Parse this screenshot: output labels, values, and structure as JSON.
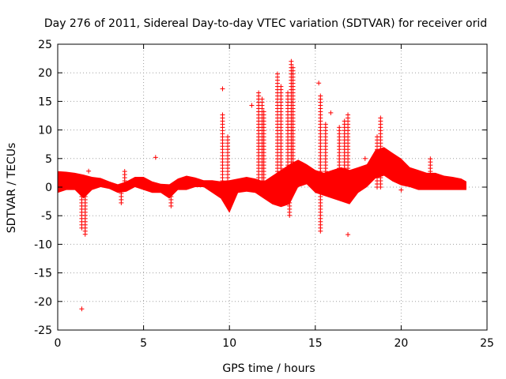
{
  "chart_data": {
    "type": "scatter",
    "title": "Day 276 of 2011, Sidereal Day-to-day VTEC variation (SDTVAR) for receiver orid",
    "xlabel": "GPS time / hours",
    "ylabel": "SDTVAR / TECUs",
    "xlim": [
      0,
      25
    ],
    "ylim": [
      -25,
      25
    ],
    "x_ticks": [
      0,
      5,
      10,
      15,
      20,
      25
    ],
    "y_ticks": [
      -25,
      -20,
      -15,
      -10,
      -5,
      0,
      5,
      10,
      15,
      20,
      25
    ],
    "grid": true,
    "marker": "+",
    "series_color": "#ff0000",
    "bands": [
      {
        "x": [
          0.0,
          0.5,
          1.0,
          1.5,
          2.0,
          2.5,
          3.0,
          3.5,
          4.0,
          4.5,
          5.0,
          5.5,
          6.0,
          6.5,
          7.0,
          7.5,
          8.0,
          8.5,
          9.0,
          9.5,
          10.0,
          10.5,
          11.0,
          11.5,
          12.0,
          12.5,
          13.0,
          13.5,
          14.0,
          14.5,
          15.0,
          15.5,
          16.0,
          16.5,
          17.0,
          17.5,
          18.0,
          18.5,
          19.0,
          19.5,
          20.0,
          20.5,
          21.0,
          21.5,
          22.0,
          22.5,
          23.0,
          23.5,
          23.8
        ],
        "upper": [
          2.8,
          2.7,
          2.5,
          2.2,
          1.8,
          1.6,
          1.0,
          0.5,
          1.0,
          1.8,
          1.8,
          1.0,
          0.6,
          0.5,
          1.5,
          2.0,
          1.7,
          1.2,
          1.2,
          1.0,
          1.2,
          1.5,
          1.8,
          1.5,
          1.0,
          2.0,
          3.0,
          4.0,
          4.8,
          4.0,
          3.0,
          2.5,
          3.0,
          3.5,
          3.0,
          3.5,
          4.0,
          6.5,
          7.0,
          6.0,
          5.0,
          3.5,
          3.0,
          2.5,
          2.5,
          2.0,
          1.8,
          1.5,
          1.0
        ],
        "lower": [
          -1.0,
          -0.5,
          -0.5,
          -2.0,
          -0.5,
          0.0,
          -0.3,
          -1.0,
          -0.8,
          0.0,
          -0.5,
          -1.0,
          -1.0,
          -2.0,
          -0.5,
          -0.5,
          0.0,
          0.0,
          -1.0,
          -2.0,
          -4.5,
          -1.0,
          -0.8,
          -1.0,
          -2.0,
          -3.0,
          -3.5,
          -3.0,
          0.0,
          0.5,
          -1.0,
          -1.5,
          -2.0,
          -2.5,
          -3.0,
          -1.0,
          0.0,
          1.5,
          2.0,
          1.0,
          0.3,
          0.0,
          -0.5,
          -0.5,
          -0.5,
          -0.5,
          -0.5,
          -0.5,
          -0.5
        ]
      }
    ],
    "spikes": [
      {
        "x": 1.4,
        "y": -7.5
      },
      {
        "x": 1.6,
        "y": -8.5
      },
      {
        "x": 3.7,
        "y": -3.0
      },
      {
        "x": 3.9,
        "y": 3.2
      },
      {
        "x": 6.6,
        "y": -3.5
      },
      {
        "x": 9.6,
        "y": 13.0
      },
      {
        "x": 9.9,
        "y": 9.0
      },
      {
        "x": 11.7,
        "y": 17.0
      },
      {
        "x": 11.9,
        "y": 15.5
      },
      {
        "x": 12.0,
        "y": 13.5
      },
      {
        "x": 12.4,
        "y": -2.5
      },
      {
        "x": 12.8,
        "y": 20.2
      },
      {
        "x": 13.0,
        "y": 18.0
      },
      {
        "x": 13.4,
        "y": 17.0
      },
      {
        "x": 13.6,
        "y": 22.5
      },
      {
        "x": 13.7,
        "y": 21.0
      },
      {
        "x": 13.5,
        "y": -5.0
      },
      {
        "x": 15.3,
        "y": 16.0
      },
      {
        "x": 15.6,
        "y": 11.5
      },
      {
        "x": 15.3,
        "y": -8.0
      },
      {
        "x": 16.4,
        "y": 11.0
      },
      {
        "x": 16.7,
        "y": 12.0
      },
      {
        "x": 16.9,
        "y": 13.0
      },
      {
        "x": 18.6,
        "y": 9.0
      },
      {
        "x": 18.8,
        "y": 12.5
      },
      {
        "x": 21.7,
        "y": 5.0
      }
    ],
    "outliers": [
      {
        "x": 1.4,
        "y": -21.3
      },
      {
        "x": 5.7,
        "y": 5.2
      },
      {
        "x": 9.6,
        "y": 17.2
      },
      {
        "x": 11.3,
        "y": 14.3
      },
      {
        "x": 15.2,
        "y": 18.2
      },
      {
        "x": 15.9,
        "y": 13.0
      },
      {
        "x": 16.9,
        "y": -8.3
      },
      {
        "x": 20.0,
        "y": -0.5
      },
      {
        "x": 1.8,
        "y": 2.8
      },
      {
        "x": 17.9,
        "y": 5.0
      }
    ]
  }
}
